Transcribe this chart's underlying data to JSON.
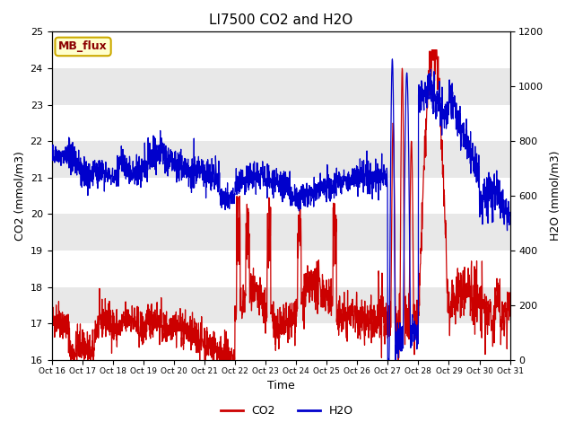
{
  "title": "LI7500 CO2 and H2O",
  "xlabel": "Time",
  "ylabel_left": "CO2 (mmol/m3)",
  "ylabel_right": "H2O (mmol/m3)",
  "co2_color": "#cc0000",
  "h2o_color": "#0000cc",
  "background_color": "#ffffff",
  "band_color": "#e8e8e8",
  "ylim_co2": [
    16.0,
    25.0
  ],
  "ylim_h2o": [
    0,
    1200
  ],
  "yticks_co2": [
    16.0,
    17.0,
    18.0,
    19.0,
    20.0,
    21.0,
    22.0,
    23.0,
    24.0,
    25.0
  ],
  "yticks_h2o": [
    0,
    200,
    400,
    600,
    800,
    1000,
    1200
  ],
  "xtick_labels": [
    "Oct 16",
    "Oct 17",
    "Oct 18",
    "Oct 19",
    "Oct 20",
    "Oct 21",
    "Oct 22",
    "Oct 23",
    "Oct 24",
    "Oct 25",
    "Oct 26",
    "Oct 27",
    "Oct 28",
    "Oct 29",
    "Oct 30",
    "Oct 31"
  ],
  "annotation_text": "MB_flux",
  "annotation_bg": "#ffffcc",
  "annotation_border": "#ccaa00",
  "legend_co2": "CO2",
  "legend_h2o": "H2O",
  "figsize": [
    6.4,
    4.8
  ],
  "dpi": 100,
  "n_points": 2000
}
